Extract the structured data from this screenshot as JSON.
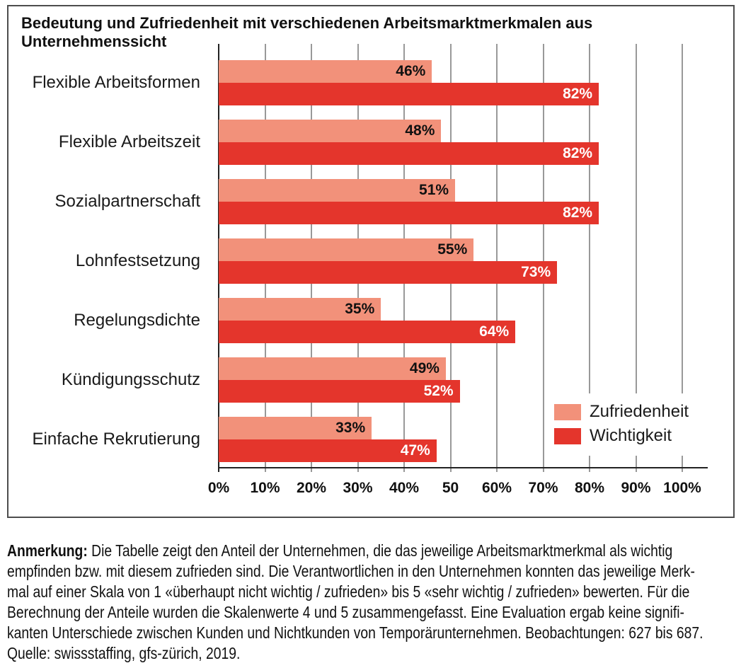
{
  "title": {
    "line1": "Bedeutung und Zufriedenheit mit verschiedenen Arbeitsmarktmerkmalen aus",
    "line2": "Unternehmenssicht"
  },
  "chart_data": {
    "type": "bar",
    "orientation": "horizontal",
    "categories": [
      "Flexible Arbeitsformen",
      "Flexible Arbeitszeit",
      "Sozialpartnerschaft",
      "Lohnfestsetzung",
      "Regelungsdichte",
      "Kündigungsschutz",
      "Einfache Rekrutierung"
    ],
    "series": [
      {
        "name": "Zufriedenheit",
        "color": "#F2917A",
        "label_color": "#111111",
        "values": [
          46,
          48,
          51,
          55,
          35,
          49,
          33
        ]
      },
      {
        "name": "Wichtigkeit",
        "color": "#E4352C",
        "label_color": "#ffffff",
        "values": [
          82,
          82,
          82,
          73,
          64,
          52,
          47
        ]
      }
    ],
    "value_suffix": "%",
    "xlim": [
      0,
      100
    ],
    "x_tick_labels": [
      "0%",
      "10%",
      "20%",
      "30%",
      "40%",
      "50",
      "60%",
      "70%",
      "80%",
      "90%",
      "100%"
    ],
    "grid": true,
    "gridline_color": "#999999",
    "legend_position": "inside-bottom-right"
  },
  "note": {
    "label": "Anmerkung:",
    "line1": " Die Tabelle zeigt den Anteil der Unternehmen, die das jeweilige Arbeitsmarktmerkmal als wichtig",
    "line2": "empfinden bzw. mit diesem zufrieden sind. Die Verantwortlichen in den Unternehmen konnten das jeweilige Merk-",
    "line3": "mal auf einer Skala von 1 «überhaupt nicht wichtig / zufrieden» bis 5 «sehr wichtig / zufrieden» bewerten. Für die",
    "line4": "Berechnung der Anteile wurden die Skalenwerte 4 und 5 zusammengefasst. Eine Evaluation ergab keine signifi-",
    "line5": "kanten Unterschiede zwischen Kunden und Nichtkunden von Temporärunternehmen. Beobachtungen: 627 bis 687.",
    "line6": "Quelle: swissstaffing, gfs-zürich, 2019."
  }
}
